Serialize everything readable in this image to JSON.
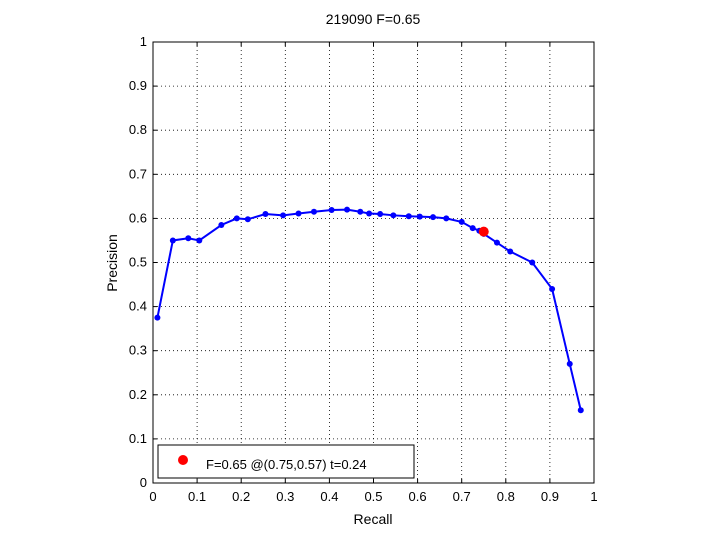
{
  "chart_data": {
    "type": "line",
    "title": "219090 F=0.65",
    "xlabel": "Recall",
    "ylabel": "Precision",
    "xlim": [
      0,
      1
    ],
    "ylim": [
      0,
      1
    ],
    "grid": true,
    "x_ticks": [
      "0",
      "0.1",
      "0.2",
      "0.3",
      "0.4",
      "0.5",
      "0.6",
      "0.7",
      "0.8",
      "0.9",
      "1"
    ],
    "y_ticks": [
      "0",
      "0.1",
      "0.2",
      "0.3",
      "0.4",
      "0.5",
      "0.6",
      "0.7",
      "0.8",
      "0.9",
      "1"
    ],
    "series": [
      {
        "color": "#0000ff",
        "x": [
          0.01,
          0.045,
          0.08,
          0.105,
          0.155,
          0.19,
          0.215,
          0.255,
          0.295,
          0.33,
          0.365,
          0.405,
          0.44,
          0.47,
          0.49,
          0.515,
          0.545,
          0.58,
          0.605,
          0.635,
          0.665,
          0.7,
          0.725,
          0.74,
          0.75,
          0.78,
          0.81,
          0.86,
          0.905,
          0.945,
          0.97
        ],
        "y": [
          0.375,
          0.55,
          0.555,
          0.55,
          0.585,
          0.6,
          0.598,
          0.61,
          0.607,
          0.611,
          0.615,
          0.619,
          0.62,
          0.615,
          0.611,
          0.61,
          0.607,
          0.605,
          0.604,
          0.603,
          0.6,
          0.592,
          0.578,
          0.572,
          0.565,
          0.545,
          0.525,
          0.5,
          0.44,
          0.27,
          0.165
        ]
      }
    ],
    "highlight_point": {
      "x": 0.75,
      "y": 0.57,
      "color": "#ff0000"
    },
    "legend": {
      "label": "F=0.65 @(0.75,0.57) t=0.24",
      "placement": "bottom-left"
    }
  }
}
